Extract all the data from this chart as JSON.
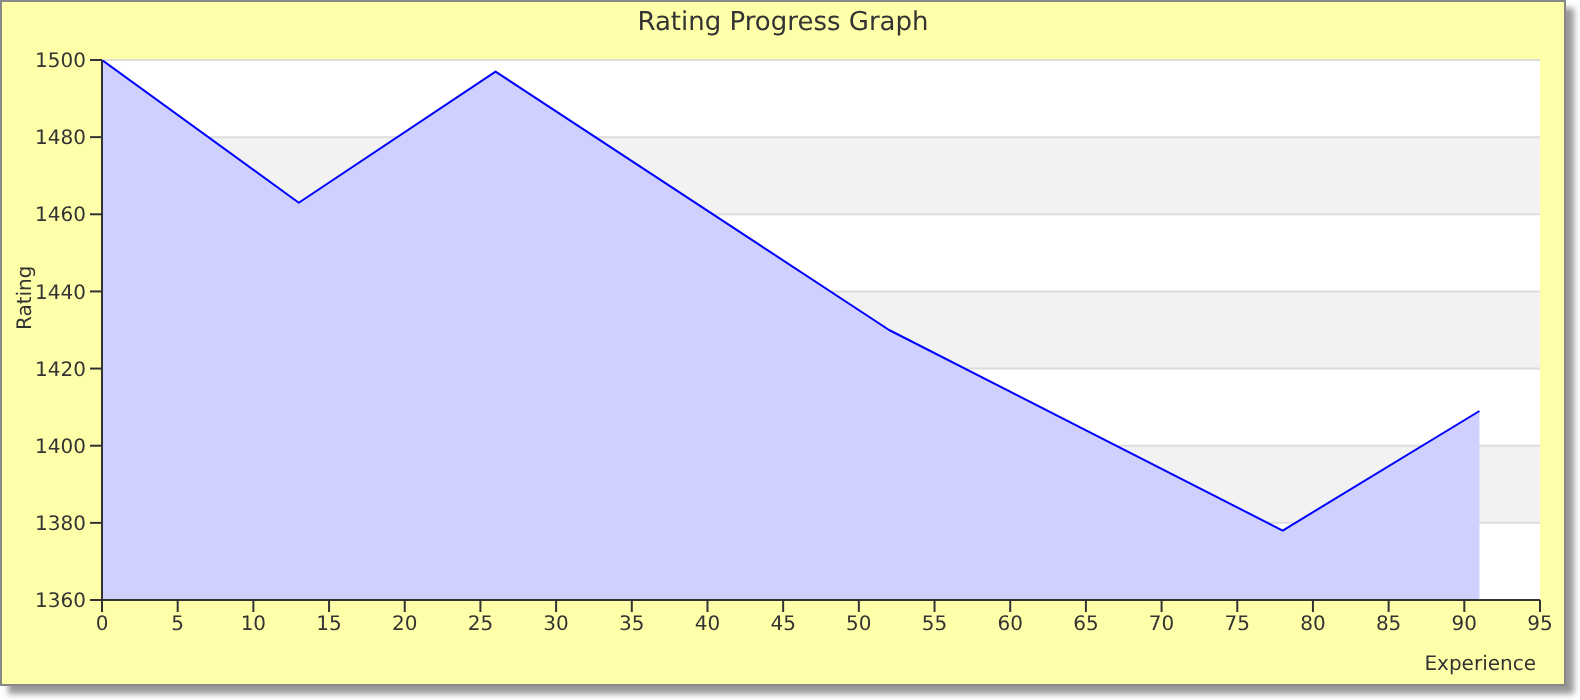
{
  "chart_data": {
    "type": "area",
    "title": "Rating Progress Graph",
    "xlabel": "Experience",
    "ylabel": "Rating",
    "x": [
      0,
      13,
      26,
      52,
      78,
      91
    ],
    "series": [
      {
        "color": "#0000ff",
        "values": [
          1500,
          1463,
          1497,
          1430,
          1378,
          1409
        ]
      }
    ],
    "xlim": [
      0,
      95
    ],
    "xticks": [
      0,
      5,
      10,
      15,
      20,
      25,
      30,
      35,
      40,
      45,
      50,
      55,
      60,
      65,
      70,
      75,
      80,
      85,
      90,
      95
    ],
    "ylim": [
      1360,
      1500
    ],
    "yticks": [
      1360,
      1380,
      1400,
      1420,
      1440,
      1460,
      1480,
      1500
    ],
    "grid": "y"
  }
}
